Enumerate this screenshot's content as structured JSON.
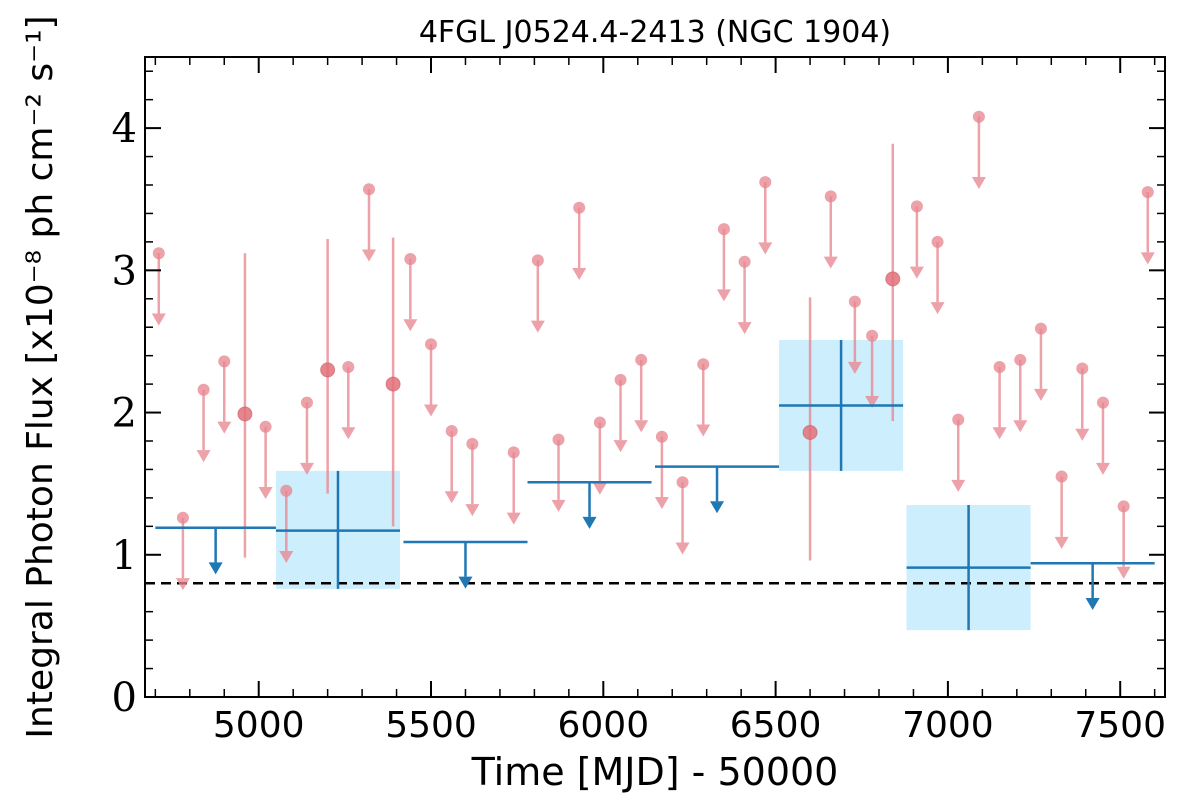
{
  "chart_data": {
    "type": "scatter",
    "title": "4FGL J0524.4-2413 (NGC 1904)",
    "xlabel": "Time [MJD] - 50000",
    "ylabel": "Integral Photon Flux [x10⁻⁸ ph cm⁻² s⁻¹]",
    "xlim": [
      4670,
      7630
    ],
    "ylim": [
      0,
      4.5
    ],
    "xticks": [
      5000,
      5500,
      6000,
      6500,
      7000,
      7500
    ],
    "xtick_labels": [
      "5000",
      "5500",
      "6000",
      "6500",
      "7000",
      "7500"
    ],
    "yticks": [
      0,
      1,
      2,
      3,
      4
    ],
    "ytick_labels": [
      "0",
      "1",
      "2",
      "3",
      "4"
    ],
    "grid": false,
    "reference_line": {
      "y": 0.8,
      "style": "dashed",
      "color": "#000000"
    },
    "colors": {
      "short_bins": "#e8868f",
      "long_bins": "#1f77b4",
      "long_bin_band": "#cdeefc",
      "reference": "#000000"
    },
    "series": [
      {
        "kind": "upper_limits",
        "color": "#e8868f",
        "x": [
          4710,
          4780,
          4840,
          4900,
          5020,
          5080,
          5140,
          5260,
          5320,
          5440,
          5500,
          5560,
          5620,
          5740,
          5810,
          5870,
          5930,
          5990,
          6050,
          6110,
          6170,
          6230,
          6290,
          6350,
          6410,
          6470,
          6660,
          6730,
          6780,
          6910,
          6970,
          7030,
          7090,
          7150,
          7210,
          7270,
          7330,
          7390,
          7450,
          7510,
          7580
        ],
        "values": [
          3.12,
          1.26,
          2.16,
          2.36,
          1.9,
          1.45,
          2.07,
          2.32,
          3.57,
          3.08,
          2.48,
          1.87,
          1.78,
          1.72,
          3.07,
          1.81,
          3.44,
          1.93,
          2.23,
          2.37,
          1.83,
          1.51,
          2.34,
          3.29,
          3.06,
          3.62,
          3.52,
          2.78,
          2.54,
          3.45,
          3.2,
          1.95,
          4.08,
          2.32,
          2.37,
          2.59,
          1.55,
          2.31,
          2.07,
          1.34,
          3.55
        ]
      },
      {
        "kind": "detections",
        "color": "#e8868f",
        "x": [
          4960,
          5200,
          5390,
          6600,
          6840
        ],
        "values": [
          1.99,
          2.3,
          2.2,
          1.86,
          2.94
        ],
        "err_low": [
          0.98,
          1.43,
          1.2,
          0.96,
          1.94
        ],
        "err_high": [
          3.12,
          3.22,
          3.23,
          2.81,
          3.89
        ]
      },
      {
        "kind": "upper_limits_long",
        "color": "#1f77b4",
        "x_start": [
          4700,
          5780,
          6150,
          7240,
          5420
        ],
        "x_end": [
          5050,
          6140,
          6510,
          7600,
          5780
        ],
        "x_center": [
          4875,
          5960,
          6330,
          7420,
          5600
        ],
        "values": [
          1.19,
          1.51,
          1.62,
          0.94,
          1.09
        ]
      },
      {
        "kind": "detections_long",
        "color": "#1f77b4",
        "x_start": [
          5050,
          6510,
          6880
        ],
        "x_end": [
          5410,
          6870,
          7240
        ],
        "x_center": [
          5230,
          6690,
          7060
        ],
        "values": [
          1.17,
          2.05,
          0.91
        ],
        "err_low": [
          0.76,
          1.59,
          0.47
        ],
        "err_high": [
          1.59,
          2.51,
          1.35
        ]
      }
    ]
  }
}
